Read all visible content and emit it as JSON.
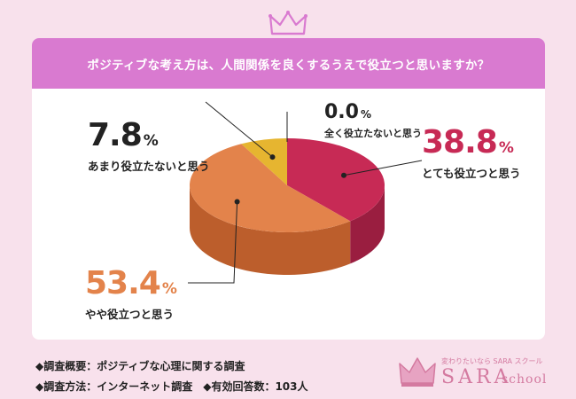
{
  "chart_data": {
    "type": "pie",
    "title": "ポジティブな考え方は、人間関係を良くするうえで役立つと思いますか？",
    "unit": "%",
    "slices": [
      {
        "label": "とても役立つと思う",
        "value": 38.8,
        "value_text": "38.8",
        "color": "#c72a55",
        "side_color": "#9a1e40"
      },
      {
        "label": "やや役立つと思う",
        "value": 53.4,
        "value_text": "53.4",
        "color": "#e3834b",
        "side_color": "#bc5e2c"
      },
      {
        "label": "あまり役立たないと思う",
        "value": 7.8,
        "value_text": "7.8",
        "color": "#e6b530",
        "side_color": "#b88a1e"
      },
      {
        "label": "全く役立たないと思う",
        "value": 0.0,
        "value_text": "0.0",
        "color": "#d9d9d9",
        "side_color": "#aaaaaa"
      }
    ]
  },
  "footer": {
    "overview": "◆調査概要：ポジティブな心理に関する調査",
    "method": "◆調査方法：インターネット調査　◆有効回答数：103人"
  },
  "logo": {
    "tagline": "変わりたいなら SARA スクール",
    "name": "SARA",
    "sub": "school"
  },
  "colors": {
    "background": "#f8e1ec",
    "header": "#d97ad0",
    "accent_pink": "#d47aa0",
    "pct_red": "#c72a55",
    "pct_orange": "#e3834b"
  }
}
